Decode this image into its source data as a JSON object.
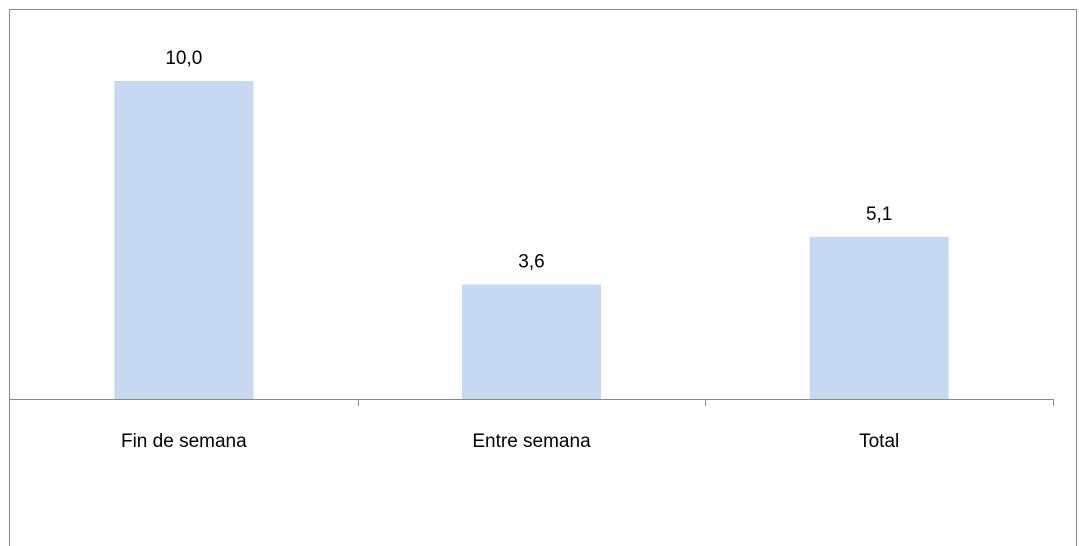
{
  "chart_data": {
    "type": "bar",
    "categories": [
      "Fin de semana",
      "Entre semana",
      "Total"
    ],
    "values": [
      10.0,
      3.6,
      5.1
    ],
    "data_labels": [
      "10,0",
      "3,6",
      "5,1"
    ],
    "title": "",
    "xlabel": "",
    "ylabel": "",
    "ylim": [
      0,
      10.0
    ],
    "grid": false,
    "legend": "none",
    "bar_color": "#c6d9f1",
    "axis_color": "#8a8a8a"
  }
}
